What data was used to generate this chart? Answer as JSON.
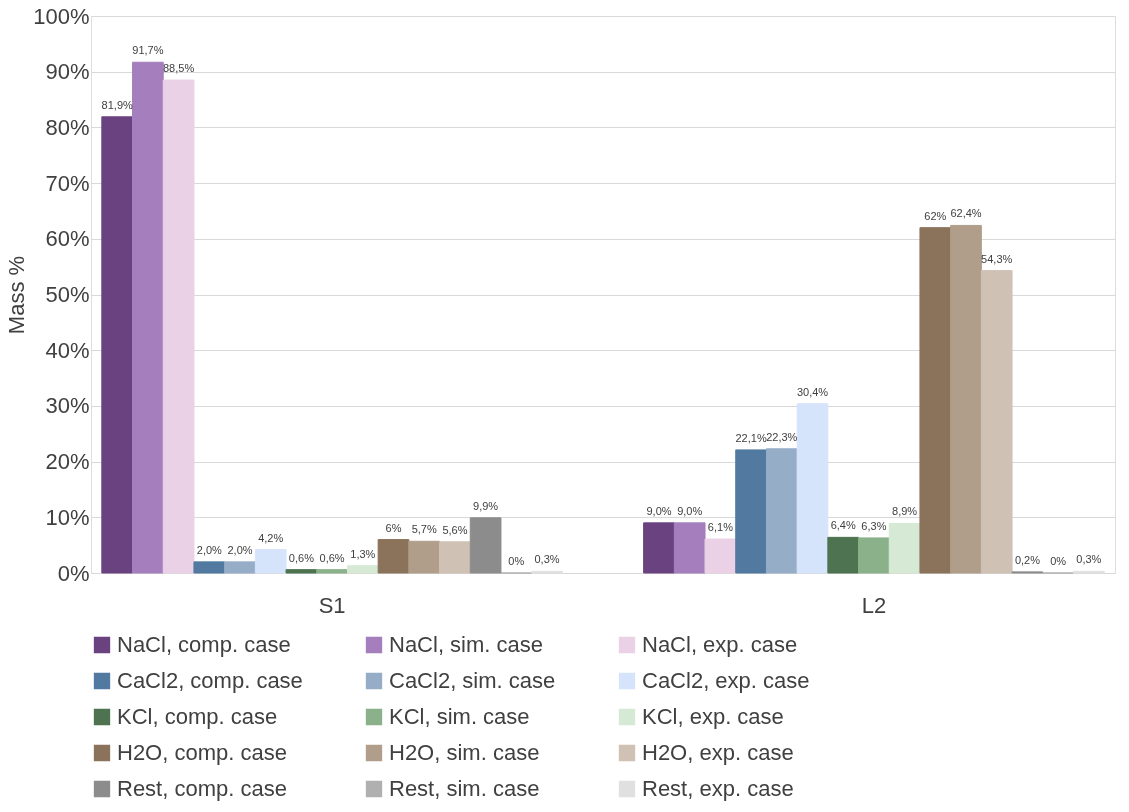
{
  "chart_data": {
    "type": "bar",
    "ylabel": "Mass %",
    "categories": [
      "S1",
      "L2"
    ],
    "ylim": [
      0,
      100
    ],
    "yticks": [
      {
        "value": 0,
        "label": "0%"
      },
      {
        "value": 10,
        "label": "10%"
      },
      {
        "value": 20,
        "label": "20%"
      },
      {
        "value": 30,
        "label": "30%"
      },
      {
        "value": 40,
        "label": "40%"
      },
      {
        "value": 50,
        "label": "50%"
      },
      {
        "value": 60,
        "label": "60%"
      },
      {
        "value": 70,
        "label": "70%"
      },
      {
        "value": 80,
        "label": "80%"
      },
      {
        "value": 90,
        "label": "90%"
      },
      {
        "value": 100,
        "label": "100%"
      }
    ],
    "grid": "y",
    "legend": "bottom",
    "series": [
      {
        "name": "NaCl, comp. case",
        "color": "#6b4280",
        "values": [
          81.9,
          9.0
        ],
        "value_labels": [
          "81,9%",
          "9,0%"
        ]
      },
      {
        "name": "NaCl, sim. case",
        "color": "#a57fbd",
        "values": [
          91.7,
          9.0
        ],
        "value_labels": [
          "91,7%",
          "9,0%"
        ]
      },
      {
        "name": "NaCl, exp. case",
        "color": "#ead1e6",
        "values": [
          88.5,
          6.1
        ],
        "value_labels": [
          "88,5%",
          "6,1%"
        ]
      },
      {
        "name": "CaCl2, comp. case",
        "color": "#527aa1",
        "values": [
          2.0,
          22.1
        ],
        "value_labels": [
          "2,0%",
          "22,1%"
        ]
      },
      {
        "name": "CaCl2, sim. case",
        "color": "#96adc8",
        "values": [
          2.0,
          22.3
        ],
        "value_labels": [
          "2,0%",
          "22,3%"
        ]
      },
      {
        "name": "CaCl2, exp. case",
        "color": "#d6e4fb",
        "values": [
          4.2,
          30.4
        ],
        "value_labels": [
          "4,2%",
          "30,4%"
        ]
      },
      {
        "name": "KCl, comp. case",
        "color": "#4d7350",
        "values": [
          0.6,
          6.4
        ],
        "value_labels": [
          "0,6%",
          "6,4%"
        ]
      },
      {
        "name": "KCl, sim. case",
        "color": "#8ab18a",
        "values": [
          0.6,
          6.3
        ],
        "value_labels": [
          "0,6%",
          "6,3%"
        ]
      },
      {
        "name": "KCl, exp. case",
        "color": "#d5e9d4",
        "values": [
          1.3,
          8.9
        ],
        "value_labels": [
          "1,3%",
          "8,9%"
        ]
      },
      {
        "name": "H2O, comp. case",
        "color": "#8b735b",
        "values": [
          6,
          62
        ],
        "value_labels": [
          "6%",
          "62%"
        ]
      },
      {
        "name": "H2O, sim. case",
        "color": "#b09e8a",
        "values": [
          5.7,
          62.4
        ],
        "value_labels": [
          "5,7%",
          "62,4%"
        ]
      },
      {
        "name": "H2O, exp. case",
        "color": "#cfc2b5",
        "values": [
          5.6,
          54.3
        ],
        "value_labels": [
          "5,6%",
          "54,3%"
        ]
      },
      {
        "name": "Rest, comp. case",
        "color": "#8c8c8c",
        "values": [
          9.9,
          0.2
        ],
        "value_labels": [
          "9,9%",
          "0,2%"
        ]
      },
      {
        "name": "Rest, sim. case",
        "color": "#b0b0b0",
        "values": [
          0,
          0
        ],
        "value_labels": [
          "0%",
          "0%"
        ]
      },
      {
        "name": "Rest, exp. case",
        "color": "#e0e0e0",
        "values": [
          0.3,
          0.3
        ],
        "value_labels": [
          "0,3%",
          "0,3%"
        ]
      }
    ]
  }
}
